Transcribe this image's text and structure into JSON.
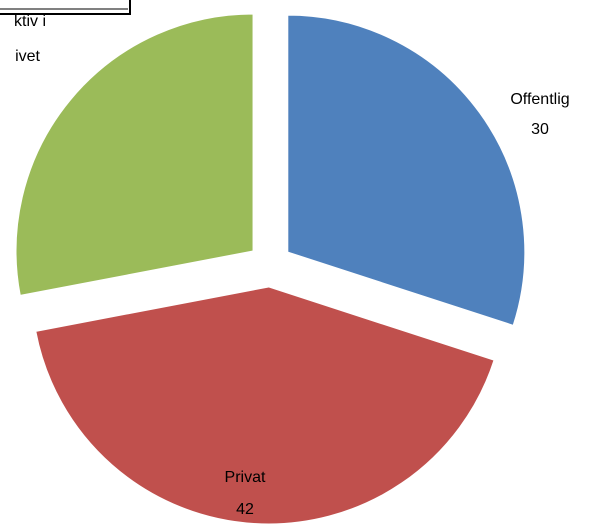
{
  "chart_data": {
    "type": "pie",
    "categories": [
      "Offentlig",
      "Privat",
      "ktiv i\nivet"
    ],
    "values": [
      30,
      42,
      28
    ],
    "value_labels": [
      "30",
      "42",
      null
    ],
    "colors": [
      "#4f81bd",
      "#c0504d",
      "#9bbb59"
    ],
    "exploded": true
  }
}
